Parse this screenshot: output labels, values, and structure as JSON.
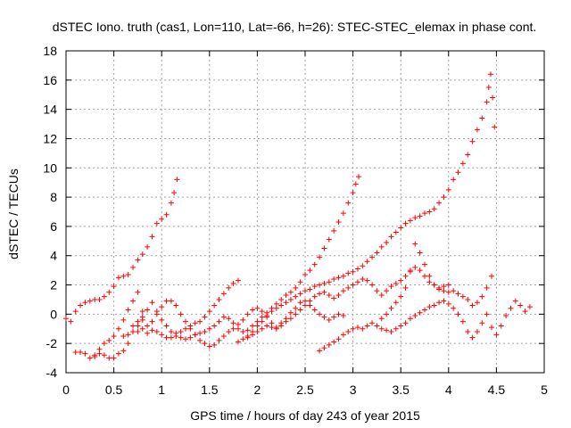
{
  "chart_data": {
    "type": "scatter",
    "title": "dSTEC Iono. truth (cas1, Lon=110, Lat=-66, h=26): STEC-STEC_elemax in phase cont.",
    "xlabel": "GPS time / hours of day 243 of year 2015",
    "ylabel": "dSTEC  / TECUs",
    "xlim": [
      0,
      5
    ],
    "ylim": [
      -4,
      18
    ],
    "xticks": [
      0,
      0.5,
      1,
      1.5,
      2,
      2.5,
      3,
      3.5,
      4,
      4.5,
      5
    ],
    "xtick_labels": [
      "0",
      "0.5",
      "1",
      "1.5",
      "2",
      "2.5",
      "3",
      "3.5",
      "4",
      "4.5",
      "5"
    ],
    "yticks": [
      -4,
      -2,
      0,
      2,
      4,
      6,
      8,
      10,
      12,
      14,
      16,
      18
    ],
    "ytick_labels": [
      "-4",
      "-2",
      "0",
      "2",
      "4",
      "6",
      "8",
      "10",
      "12",
      "14",
      "16",
      "18"
    ],
    "grid": true,
    "marker": "plus",
    "color": "#ff0000",
    "series": [
      {
        "x": [
          0.0,
          0.05,
          0.1,
          0.15,
          0.2,
          0.25,
          0.3,
          0.35,
          0.4,
          0.45,
          0.5,
          0.55,
          0.6,
          0.65,
          0.7,
          0.75,
          0.8,
          0.85,
          0.9,
          0.95,
          1.0,
          1.05,
          1.1,
          1.13,
          1.16
        ],
        "y": [
          -0.3,
          -0.5,
          0.2,
          0.6,
          0.8,
          0.9,
          1.0,
          1.0,
          1.2,
          1.5,
          1.9,
          2.5,
          2.6,
          2.7,
          3.2,
          3.7,
          4.1,
          4.6,
          5.3,
          6.2,
          6.5,
          6.8,
          7.6,
          8.3,
          9.2
        ]
      },
      {
        "x": [
          0.1,
          0.15,
          0.2,
          0.25,
          0.3,
          0.35,
          0.4,
          0.45,
          0.5,
          0.55,
          0.6,
          0.65,
          0.7,
          0.75,
          0.8
        ],
        "y": [
          -2.6,
          -2.6,
          -2.7,
          -3.0,
          -2.9,
          -2.7,
          -2.8,
          -3.0,
          -3.0,
          -2.7,
          -2.5,
          -2.0,
          -1.2,
          -0.8,
          -0.4
        ]
      },
      {
        "x": [
          0.3,
          0.35,
          0.4,
          0.45,
          0.5,
          0.55,
          0.6,
          0.65,
          0.7,
          0.75,
          0.8,
          0.85,
          0.9,
          0.95,
          1.0,
          1.05,
          1.1,
          1.15,
          1.2,
          1.25,
          1.3,
          1.35,
          1.4,
          1.45,
          1.5,
          1.55,
          1.6,
          1.65,
          1.7,
          1.75,
          1.8,
          1.85,
          1.9,
          1.95,
          2.0,
          2.05,
          2.1,
          2.15,
          2.2,
          2.25,
          2.3,
          2.35,
          2.4,
          2.45,
          2.5,
          2.55,
          2.6,
          2.65,
          2.7,
          2.75,
          2.8,
          2.85,
          2.9
        ],
        "y": [
          -2.8,
          -2.4,
          -2.0,
          -1.8,
          -1.5,
          -1.0,
          -0.4,
          0.3,
          0.9,
          1.5,
          0.2,
          -0.8,
          -0.5,
          0.0,
          0.5,
          0.9,
          0.9,
          0.6,
          0.0,
          -0.5,
          -1.0,
          -1.4,
          -1.8,
          -2.0,
          -2.2,
          -2.1,
          -1.8,
          -1.5,
          -1.2,
          -1.0,
          -0.7,
          -0.4,
          0.0,
          0.3,
          0.4,
          0.2,
          -0.2,
          -0.6,
          -0.9,
          -0.6,
          -0.3,
          0.1,
          0.4,
          0.8,
          0.9,
          0.6,
          0.3,
          0.0,
          -0.2,
          -0.4,
          -0.2,
          0.0,
          -0.1
        ]
      },
      {
        "x": [
          0.6,
          0.65,
          0.7,
          0.75,
          0.8,
          0.85,
          0.9,
          0.95,
          1.0,
          1.05,
          1.1,
          1.15,
          1.2,
          1.25,
          1.3,
          1.35,
          1.4,
          1.45,
          1.5,
          1.55,
          1.6,
          1.65,
          1.7,
          1.75,
          1.8
        ],
        "y": [
          -1.5,
          -1.4,
          -1.2,
          -1.2,
          -1.0,
          -1.3,
          -1.1,
          -1.2,
          -1.4,
          -1.6,
          -1.6,
          -1.3,
          -1.2,
          -1.0,
          -0.8,
          -0.6,
          -0.5,
          -0.2,
          0.2,
          0.6,
          1.0,
          1.4,
          1.8,
          2.1,
          2.3
        ]
      },
      {
        "x": [
          0.7,
          0.75,
          0.8,
          0.85,
          0.9,
          0.95,
          1.0,
          1.05,
          1.1,
          1.15,
          1.2,
          1.25,
          1.3,
          1.35,
          1.4,
          1.45,
          1.5,
          1.55,
          1.6,
          1.65,
          1.7,
          1.75,
          1.8,
          1.85,
          1.9,
          1.95,
          2.0,
          2.05,
          2.1,
          2.15,
          2.2,
          2.25,
          2.3,
          2.35,
          2.4,
          2.45,
          2.5,
          2.55,
          2.6,
          2.65,
          2.7,
          2.75,
          2.8,
          2.85,
          2.9,
          2.95,
          3.0,
          3.03,
          3.06
        ],
        "y": [
          -0.8,
          -0.5,
          -0.2,
          0.3,
          0.8,
          0.2,
          -0.4,
          -0.8,
          -1.2,
          -1.5,
          -1.6,
          -1.7,
          -1.6,
          -1.4,
          -1.3,
          -1.2,
          -1.0,
          -0.8,
          -0.5,
          -0.2,
          -0.3,
          -0.6,
          -1.0,
          -1.2,
          -1.1,
          -0.8,
          -0.5,
          -0.2,
          0.1,
          0.4,
          0.7,
          1.0,
          1.3,
          1.5,
          1.8,
          2.2,
          2.7,
          3.0,
          3.4,
          3.9,
          4.5,
          5.1,
          5.7,
          6.3,
          6.9,
          7.6,
          8.3,
          8.9,
          9.4
        ]
      },
      {
        "x": [
          1.8,
          1.85,
          1.9,
          1.95,
          2.0,
          2.05,
          2.1,
          2.15,
          2.2,
          2.25,
          2.3,
          2.35,
          2.4,
          2.45,
          2.5,
          2.55,
          2.6,
          2.65,
          2.7,
          2.75,
          2.8,
          2.85,
          2.9,
          2.95,
          3.0,
          3.05,
          3.1,
          3.15,
          3.2,
          3.25,
          3.3,
          3.35,
          3.4,
          3.45,
          3.5,
          3.55,
          3.6,
          3.65,
          3.7,
          3.75,
          3.8,
          3.85,
          3.9,
          3.95,
          4.0,
          4.05,
          4.1,
          4.15,
          4.2,
          4.25,
          4.3,
          4.35,
          4.4,
          4.42,
          4.44,
          4.46,
          4.48
        ],
        "y": [
          -1.9,
          -1.7,
          -1.5,
          -1.2,
          -0.8,
          -0.5,
          -0.1,
          0.2,
          0.4,
          0.6,
          0.8,
          1.0,
          1.2,
          1.4,
          1.6,
          1.7,
          1.9,
          2.0,
          2.1,
          2.2,
          2.4,
          2.5,
          2.6,
          2.8,
          2.9,
          3.1,
          3.3,
          3.6,
          3.9,
          4.2,
          4.6,
          4.9,
          5.3,
          5.6,
          5.9,
          6.2,
          6.4,
          6.6,
          6.7,
          6.9,
          7.0,
          7.2,
          7.6,
          8.0,
          8.5,
          9.2,
          9.7,
          10.3,
          10.9,
          11.8,
          12.6,
          13.4,
          14.5,
          15.5,
          16.4,
          14.8,
          12.8
        ]
      },
      {
        "x": [
          1.9,
          1.95,
          2.0,
          2.05,
          2.1,
          2.15,
          2.2,
          2.25,
          2.3,
          2.35,
          2.4,
          2.45,
          2.5,
          2.55,
          2.6,
          2.65,
          2.7,
          2.75,
          2.8,
          2.85,
          2.9,
          2.95,
          3.0,
          3.05,
          3.1,
          3.15,
          3.2,
          3.25,
          3.3,
          3.35,
          3.4,
          3.45,
          3.5,
          3.55,
          3.6,
          3.65,
          3.7,
          3.75,
          3.8,
          3.85,
          3.9,
          3.95,
          4.0
        ],
        "y": [
          -1.6,
          -1.4,
          -1.2,
          -1.0,
          -0.8,
          -0.9,
          -1.0,
          -0.8,
          -0.5,
          -0.3,
          0.0,
          0.3,
          0.6,
          0.9,
          1.2,
          1.4,
          1.5,
          1.3,
          1.1,
          1.3,
          1.6,
          1.8,
          2.0,
          2.2,
          2.4,
          2.3,
          2.0,
          1.6,
          1.3,
          1.6,
          1.9,
          2.1,
          2.3,
          2.6,
          2.9,
          3.2,
          3.0,
          2.6,
          2.2,
          2.0,
          1.8,
          1.9,
          2.0
        ]
      },
      {
        "x": [
          2.65,
          2.7,
          2.75,
          2.8,
          2.85,
          2.9,
          2.95,
          3.0,
          3.05,
          3.1,
          3.15,
          3.2,
          3.25,
          3.3,
          3.35,
          3.4,
          3.45,
          3.5,
          3.55,
          3.6,
          3.65,
          3.7,
          3.75,
          3.8,
          3.85,
          3.9,
          3.95,
          4.0,
          4.05,
          4.1,
          4.15,
          4.2,
          4.25,
          4.3,
          4.35,
          4.4,
          4.45,
          4.5,
          4.55,
          4.6,
          4.65,
          4.7,
          4.75,
          4.8,
          4.85
        ],
        "y": [
          -2.5,
          -2.3,
          -2.1,
          -1.9,
          -1.7,
          -1.4,
          -1.2,
          -1.0,
          -0.9,
          -1.0,
          -0.8,
          -0.6,
          -0.8,
          -1.0,
          -1.1,
          -1.2,
          -1.0,
          -0.8,
          -0.6,
          -0.3,
          -0.1,
          0.1,
          0.3,
          0.5,
          0.6,
          0.8,
          0.9,
          0.7,
          0.4,
          0.0,
          -0.5,
          -1.2,
          -1.6,
          -1.2,
          -0.6,
          0.0,
          -0.9,
          -1.4,
          -0.8,
          -0.1,
          0.4,
          0.9,
          0.6,
          0.2,
          0.5
        ]
      },
      {
        "x": [
          3.3,
          3.35,
          3.4,
          3.45,
          3.5,
          3.55,
          3.6,
          3.65,
          3.7,
          3.75,
          3.8,
          3.85,
          3.9,
          3.95,
          4.0,
          4.05,
          4.1,
          4.15,
          4.2,
          4.25,
          4.3,
          4.35,
          4.4,
          4.45
        ],
        "y": [
          -0.3,
          0.0,
          0.4,
          0.8,
          1.2,
          1.8,
          3.0,
          4.8,
          4.2,
          3.4,
          2.6,
          2.0,
          1.7,
          1.6,
          1.5,
          1.6,
          1.4,
          1.2,
          1.0,
          0.6,
          0.8,
          1.2,
          1.8,
          2.6
        ]
      }
    ]
  }
}
